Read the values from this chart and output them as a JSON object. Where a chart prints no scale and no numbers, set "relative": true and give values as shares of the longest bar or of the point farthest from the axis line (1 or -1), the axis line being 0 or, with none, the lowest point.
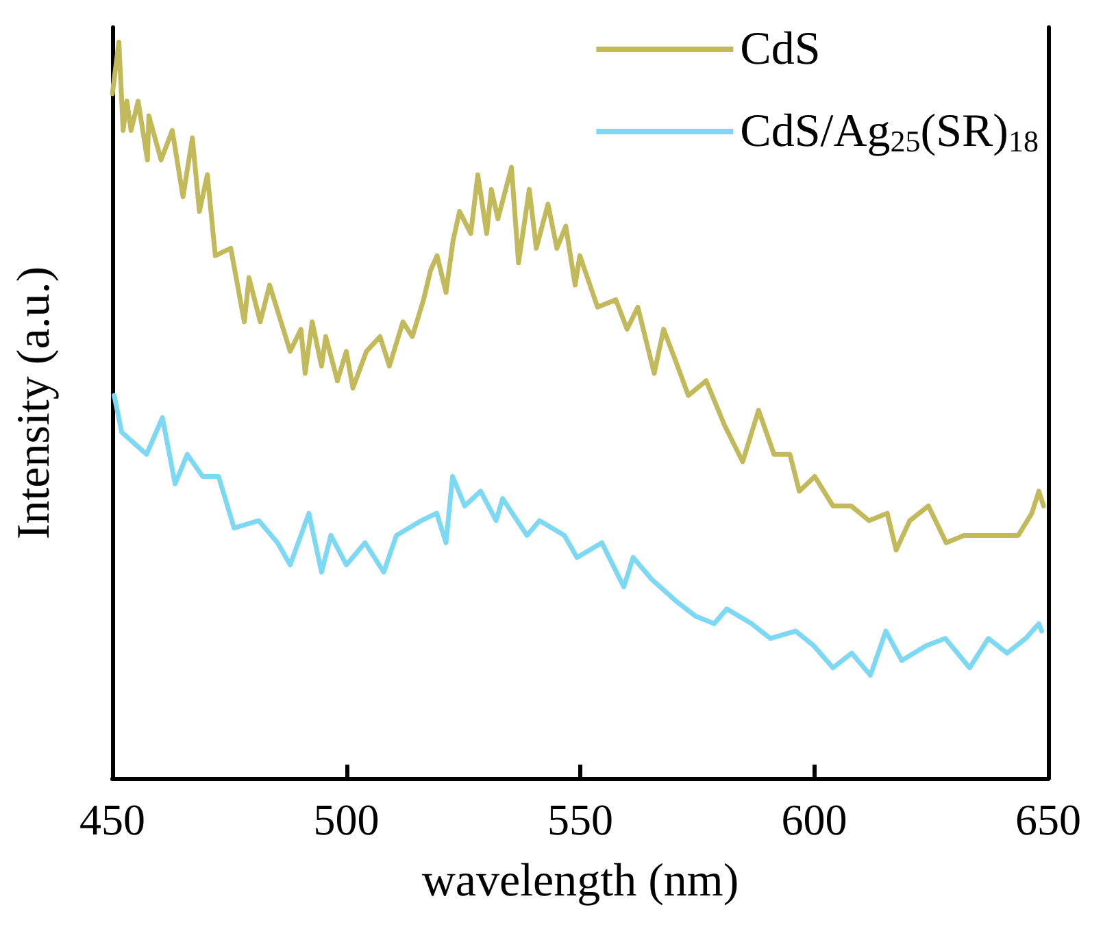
{
  "chart_data": {
    "type": "line",
    "relative": true,
    "xlabel": "wavelength (nm)",
    "ylabel": "Intensity (a.u.)",
    "xlim": [
      450,
      650
    ],
    "xticks": [
      450,
      500,
      550,
      600,
      650
    ],
    "legend": "top right",
    "grid": false,
    "marker": "none",
    "line_style": "solid",
    "series": [
      {
        "name": "CdS",
        "color": "#c2b95a",
        "x": [
          450,
          451.4,
          452.3,
          453.1,
          454,
          455.5,
          457.5,
          457.8,
          460.4,
          462.8,
          465.1,
          467.1,
          468.6,
          470.3,
          472,
          475.3,
          478.2,
          479.2,
          481.6,
          483.6,
          488,
          490.3,
          491.2,
          492.7,
          494.7,
          495.6,
          498.1,
          500,
          501.4,
          504.3,
          507.2,
          509.2,
          512.1,
          514.1,
          516.5,
          518,
          519.4,
          521.3,
          522.8,
          524.2,
          526.6,
          528.1,
          530,
          531,
          532.4,
          535.3,
          536.8,
          539.1,
          540.6,
          543.1,
          545,
          546.9,
          548.9,
          549.9,
          553.7,
          557.6,
          560,
          562.3,
          565.8,
          567.8,
          570.2,
          573.1,
          576.9,
          580.8,
          584.7,
          588.1,
          591.4,
          594.8,
          596.8,
          600.1,
          604,
          607.9,
          611.7,
          615.6,
          617.5,
          620.4,
          624.4,
          628.2,
          632,
          636,
          639.8,
          643.6,
          646.5,
          648,
          649
        ],
        "values": [
          0.93,
          1.0,
          0.88,
          0.92,
          0.88,
          0.92,
          0.84,
          0.9,
          0.84,
          0.88,
          0.79,
          0.87,
          0.77,
          0.82,
          0.71,
          0.72,
          0.62,
          0.68,
          0.62,
          0.67,
          0.58,
          0.61,
          0.55,
          0.62,
          0.56,
          0.6,
          0.54,
          0.58,
          0.53,
          0.58,
          0.6,
          0.56,
          0.62,
          0.6,
          0.65,
          0.69,
          0.71,
          0.66,
          0.73,
          0.77,
          0.74,
          0.82,
          0.74,
          0.8,
          0.76,
          0.83,
          0.7,
          0.8,
          0.72,
          0.78,
          0.72,
          0.75,
          0.67,
          0.71,
          0.64,
          0.65,
          0.61,
          0.64,
          0.55,
          0.61,
          0.57,
          0.52,
          0.54,
          0.48,
          0.43,
          0.5,
          0.44,
          0.44,
          0.39,
          0.41,
          0.37,
          0.37,
          0.35,
          0.36,
          0.31,
          0.35,
          0.37,
          0.32,
          0.33,
          0.33,
          0.33,
          0.33,
          0.36,
          0.39,
          0.37
        ]
      },
      {
        "name": "CdS/Ag$_{25}$(SR)$_{18}$",
        "color": "#7dd8f4",
        "x": [
          450.4,
          452,
          457.3,
          460.7,
          463.4,
          466,
          469.3,
          472.7,
          476,
          481.3,
          485.3,
          488,
          492,
          494.7,
          496.7,
          500,
          504,
          508,
          510.7,
          516,
          519.3,
          521.3,
          522.7,
          525.3,
          528.7,
          532,
          533.4,
          538.6,
          541.3,
          546.6,
          549.3,
          554.6,
          559.3,
          561.3,
          565.3,
          570.6,
          574.7,
          578.6,
          581.3,
          586.6,
          590.6,
          596,
          599.9,
          604,
          608,
          612,
          615.3,
          618.7,
          623.9,
          628,
          633.2,
          637.2,
          641.2,
          645.2,
          648,
          648.6
        ],
        "values": [
          0.52,
          0.47,
          0.44,
          0.49,
          0.4,
          0.44,
          0.41,
          0.41,
          0.34,
          0.35,
          0.32,
          0.29,
          0.36,
          0.28,
          0.33,
          0.29,
          0.32,
          0.28,
          0.33,
          0.35,
          0.36,
          0.32,
          0.41,
          0.37,
          0.39,
          0.35,
          0.38,
          0.33,
          0.35,
          0.33,
          0.3,
          0.32,
          0.26,
          0.3,
          0.27,
          0.24,
          0.22,
          0.21,
          0.23,
          0.21,
          0.19,
          0.2,
          0.18,
          0.15,
          0.17,
          0.14,
          0.2,
          0.16,
          0.18,
          0.19,
          0.15,
          0.19,
          0.17,
          0.19,
          0.21,
          0.2
        ]
      }
    ]
  }
}
